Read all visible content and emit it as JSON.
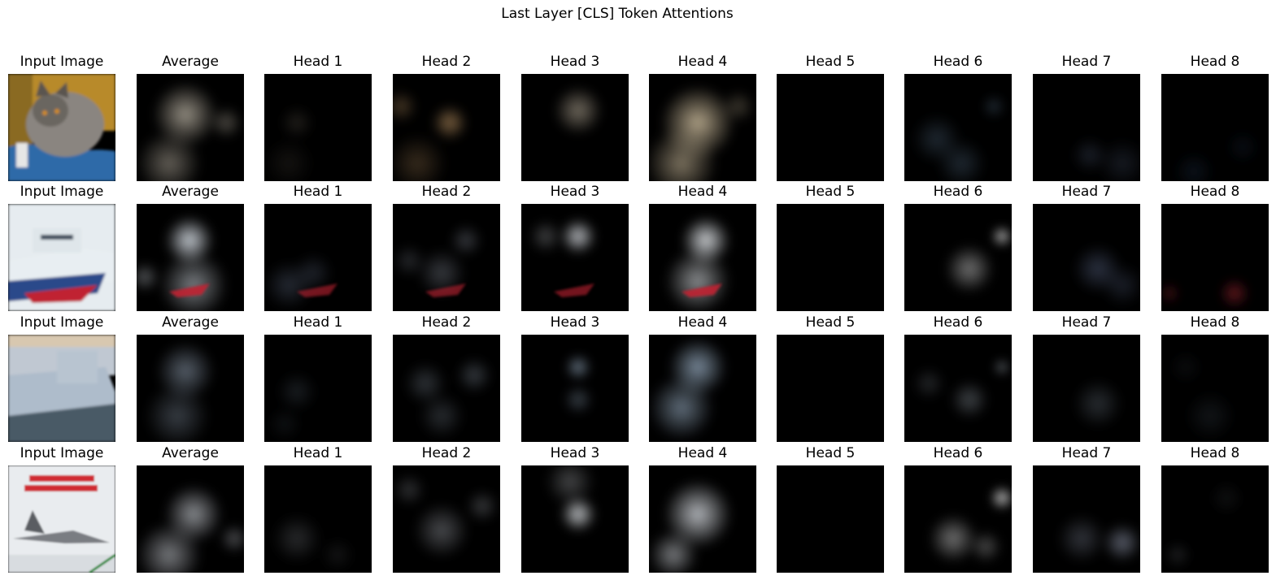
{
  "figure": {
    "title": "Last Layer [CLS] Token Attentions"
  },
  "grid": {
    "columns": [
      "Input Image",
      "Average",
      "Head 1",
      "Head 2",
      "Head 3",
      "Head 4",
      "Head 5",
      "Head 6",
      "Head 7",
      "Head 8"
    ],
    "rows": [
      {
        "content": "cat"
      },
      {
        "content": "ship"
      },
      {
        "content": "ship"
      },
      {
        "content": "airplane"
      }
    ]
  },
  "colors": {
    "background": "#ffffff",
    "empty_panel": "#000000",
    "cat_fur": "#8a8580",
    "cat_blanket_blue": "#2f6aa8",
    "cat_backdrop_orange": "#b88a2a",
    "ship_hull_white": "#e8eef2",
    "ship_hull_blue": "#2a4a8a",
    "ship_hull_red": "#c02030",
    "airplane_poster_red": "#d02a30",
    "airplane_body_gray": "#7a7d82"
  }
}
